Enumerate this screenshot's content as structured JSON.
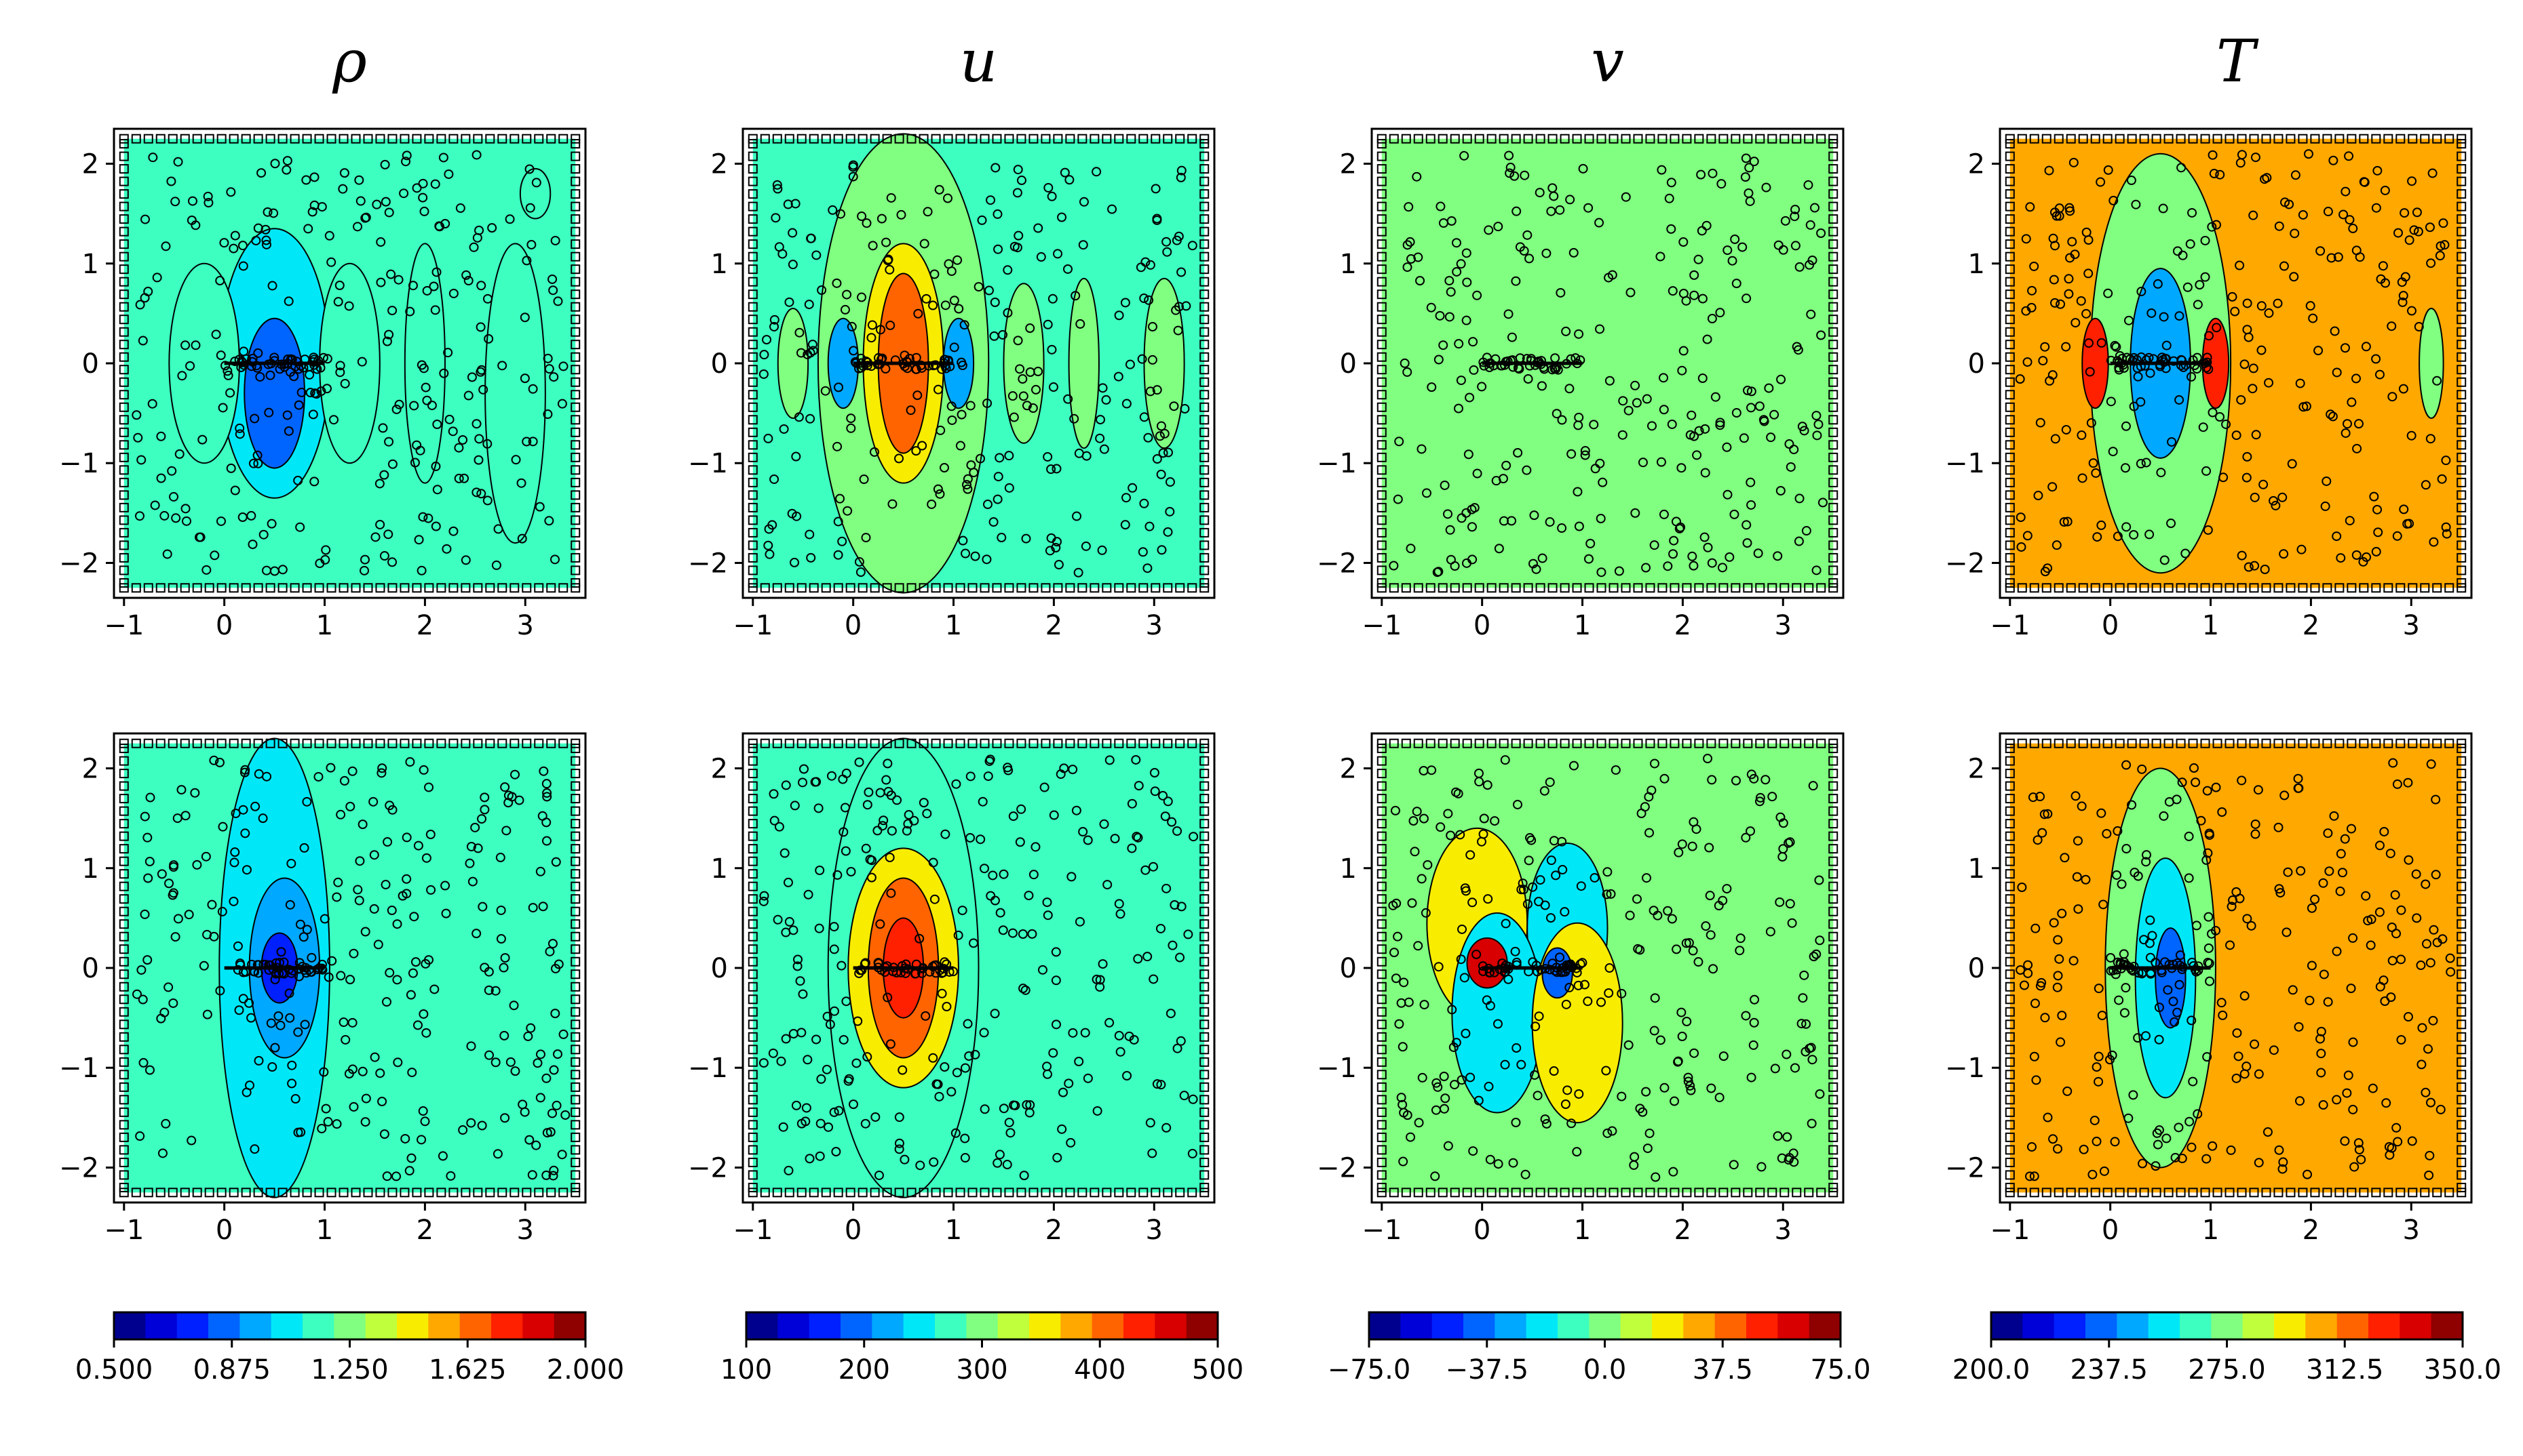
{
  "figure": {
    "titles": [
      "ρ",
      "u",
      "v",
      "T"
    ]
  },
  "chart_data": {
    "type": "contour",
    "description_rows": 2,
    "xlim": [
      -1.1,
      3.6
    ],
    "ylim": [
      -2.35,
      2.35
    ],
    "x_ticks": [
      -1,
      0,
      1,
      2,
      3
    ],
    "y_ticks": [
      -2,
      -1,
      0,
      1,
      2
    ],
    "x_tick_labels": [
      "−1",
      "0",
      "1",
      "2",
      "3"
    ],
    "y_tick_labels": [
      "−2",
      "−1",
      "0",
      "1",
      "2"
    ],
    "variables": [
      {
        "name": "ρ",
        "colorbar": {
          "min": 0.5,
          "max": 2.0,
          "ticks": [
            0.5,
            0.875,
            1.25,
            1.625,
            2.0
          ],
          "tick_labels": [
            "0.500",
            "0.875",
            "1.250",
            "1.625",
            "2.000"
          ]
        },
        "background": 1.15
      },
      {
        "name": "u",
        "colorbar": {
          "min": 100,
          "max": 500,
          "ticks": [
            100,
            200,
            300,
            400,
            500
          ],
          "tick_labels": [
            "100",
            "200",
            "300",
            "400",
            "500"
          ]
        },
        "background": 280
      },
      {
        "name": "v",
        "colorbar": {
          "min": -75.0,
          "max": 75.0,
          "ticks": [
            -75,
            -37.5,
            0,
            37.5,
            75
          ],
          "tick_labels": [
            "−75.0",
            "−37.5",
            "0.0",
            "37.5",
            "75.0"
          ]
        },
        "background": 0
      },
      {
        "name": "T",
        "colorbar": {
          "min": 200,
          "max": 350,
          "ticks": [
            200,
            237.5,
            275,
            312.5,
            350
          ],
          "tick_labels": [
            "200.0",
            "237.5",
            "275.0",
            "312.5",
            "350.0"
          ]
        },
        "background": 300
      }
    ],
    "colormap": [
      "#00008f",
      "#0000d8",
      "#0020ff",
      "#0064ff",
      "#00a8ff",
      "#00e8f8",
      "#3cffc0",
      "#80ff80",
      "#c0ff3c",
      "#f8ec00",
      "#ffa800",
      "#ff6400",
      "#ff2000",
      "#d80000",
      "#8f0000"
    ]
  }
}
